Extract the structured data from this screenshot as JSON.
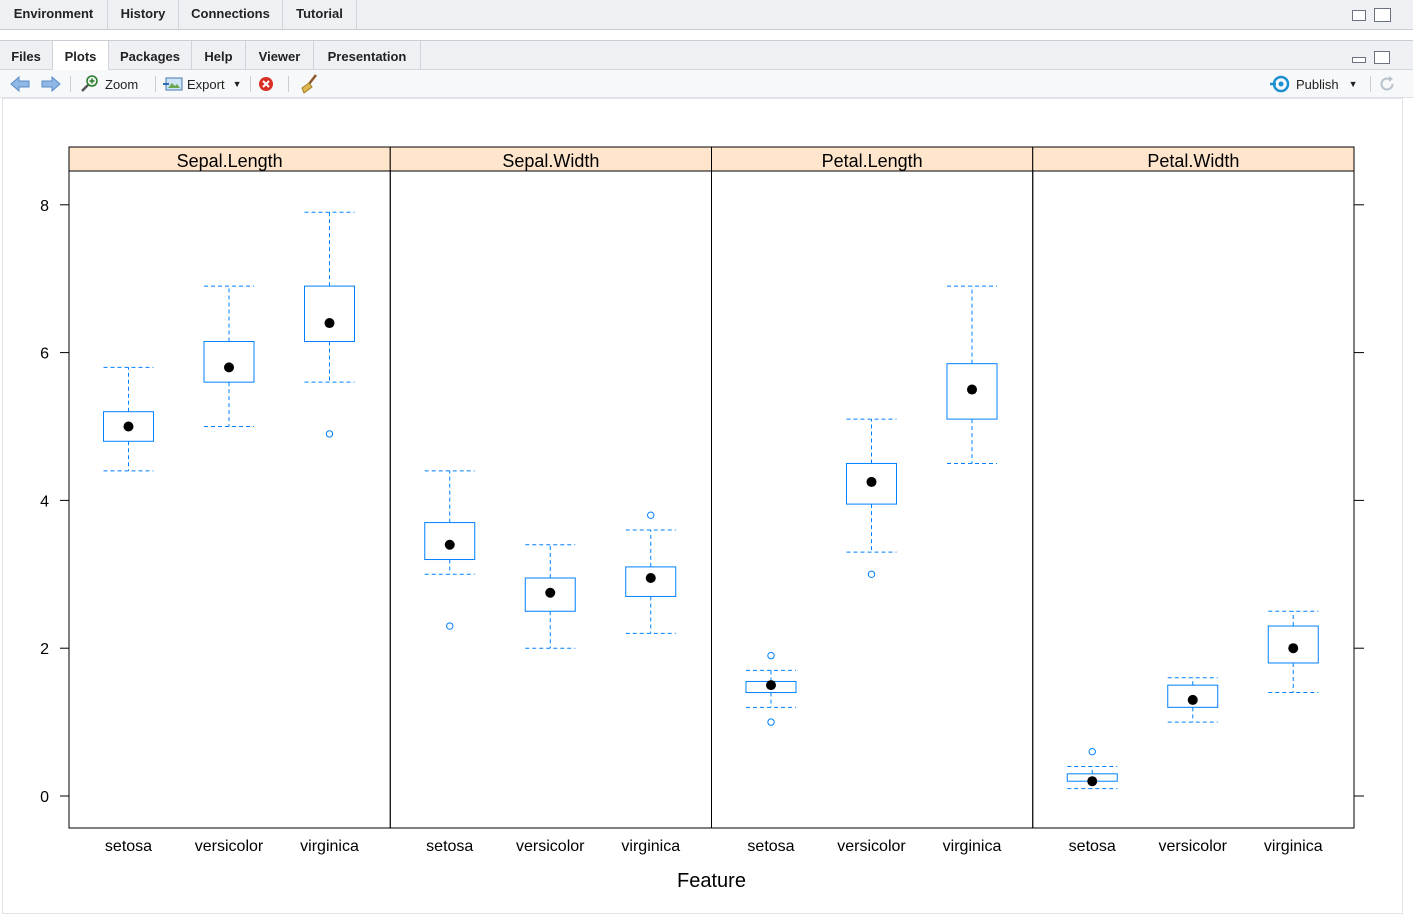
{
  "top_tabs": [
    "Environment",
    "History",
    "Connections",
    "Tutorial"
  ],
  "pane_tabs": [
    "Files",
    "Plots",
    "Packages",
    "Help",
    "Viewer",
    "Presentation"
  ],
  "active_pane_tab": "Plots",
  "toolbar": {
    "zoom_label": "Zoom",
    "export_label": "Export",
    "publish_label": "Publish"
  },
  "chart_data": {
    "type": "box",
    "xlabel": "Feature",
    "ylabel": "",
    "ylim": [
      -0.45,
      8.45
    ],
    "yticks": [
      0,
      2,
      4,
      6,
      8
    ],
    "categories": [
      "setosa",
      "versicolor",
      "virginica"
    ],
    "panels": [
      {
        "name": "Sepal.Length",
        "boxes": [
          {
            "category": "setosa",
            "min": 4.4,
            "q1": 4.8,
            "median": 5.0,
            "q3": 5.2,
            "max": 5.8,
            "outliers": []
          },
          {
            "category": "versicolor",
            "min": 5.0,
            "q1": 5.6,
            "median": 5.8,
            "q3": 6.15,
            "max": 6.9,
            "outliers": []
          },
          {
            "category": "virginica",
            "min": 5.6,
            "q1": 6.15,
            "median": 6.4,
            "q3": 6.9,
            "max": 7.9,
            "outliers": [
              4.9
            ]
          }
        ]
      },
      {
        "name": "Sepal.Width",
        "boxes": [
          {
            "category": "setosa",
            "min": 3.0,
            "q1": 3.2,
            "median": 3.4,
            "q3": 3.7,
            "max": 4.4,
            "outliers": [
              2.3
            ]
          },
          {
            "category": "versicolor",
            "min": 2.0,
            "q1": 2.5,
            "median": 2.75,
            "q3": 2.95,
            "max": 3.4,
            "outliers": []
          },
          {
            "category": "virginica",
            "min": 2.2,
            "q1": 2.7,
            "median": 2.95,
            "q3": 3.1,
            "max": 3.6,
            "outliers": [
              3.8
            ]
          }
        ]
      },
      {
        "name": "Petal.Length",
        "boxes": [
          {
            "category": "setosa",
            "min": 1.2,
            "q1": 1.4,
            "median": 1.5,
            "q3": 1.55,
            "max": 1.7,
            "outliers": [
              1.9,
              1.0
            ]
          },
          {
            "category": "versicolor",
            "min": 3.3,
            "q1": 3.95,
            "median": 4.25,
            "q3": 4.5,
            "max": 5.1,
            "outliers": [
              3.0
            ]
          },
          {
            "category": "virginica",
            "min": 4.5,
            "q1": 5.1,
            "median": 5.5,
            "q3": 5.85,
            "max": 6.9,
            "outliers": []
          }
        ]
      },
      {
        "name": "Petal.Width",
        "boxes": [
          {
            "category": "setosa",
            "min": 0.1,
            "q1": 0.2,
            "median": 0.2,
            "q3": 0.3,
            "max": 0.4,
            "outliers": [
              0.6
            ]
          },
          {
            "category": "versicolor",
            "min": 1.0,
            "q1": 1.2,
            "median": 1.3,
            "q3": 1.5,
            "max": 1.6,
            "outliers": []
          },
          {
            "category": "virginica",
            "min": 1.4,
            "q1": 1.8,
            "median": 2.0,
            "q3": 2.3,
            "max": 2.5,
            "outliers": []
          }
        ]
      }
    ],
    "colors": {
      "strip": "#ffe5cc",
      "box": "#0080ff",
      "median_dot": "#000000",
      "frame": "#000000"
    }
  }
}
